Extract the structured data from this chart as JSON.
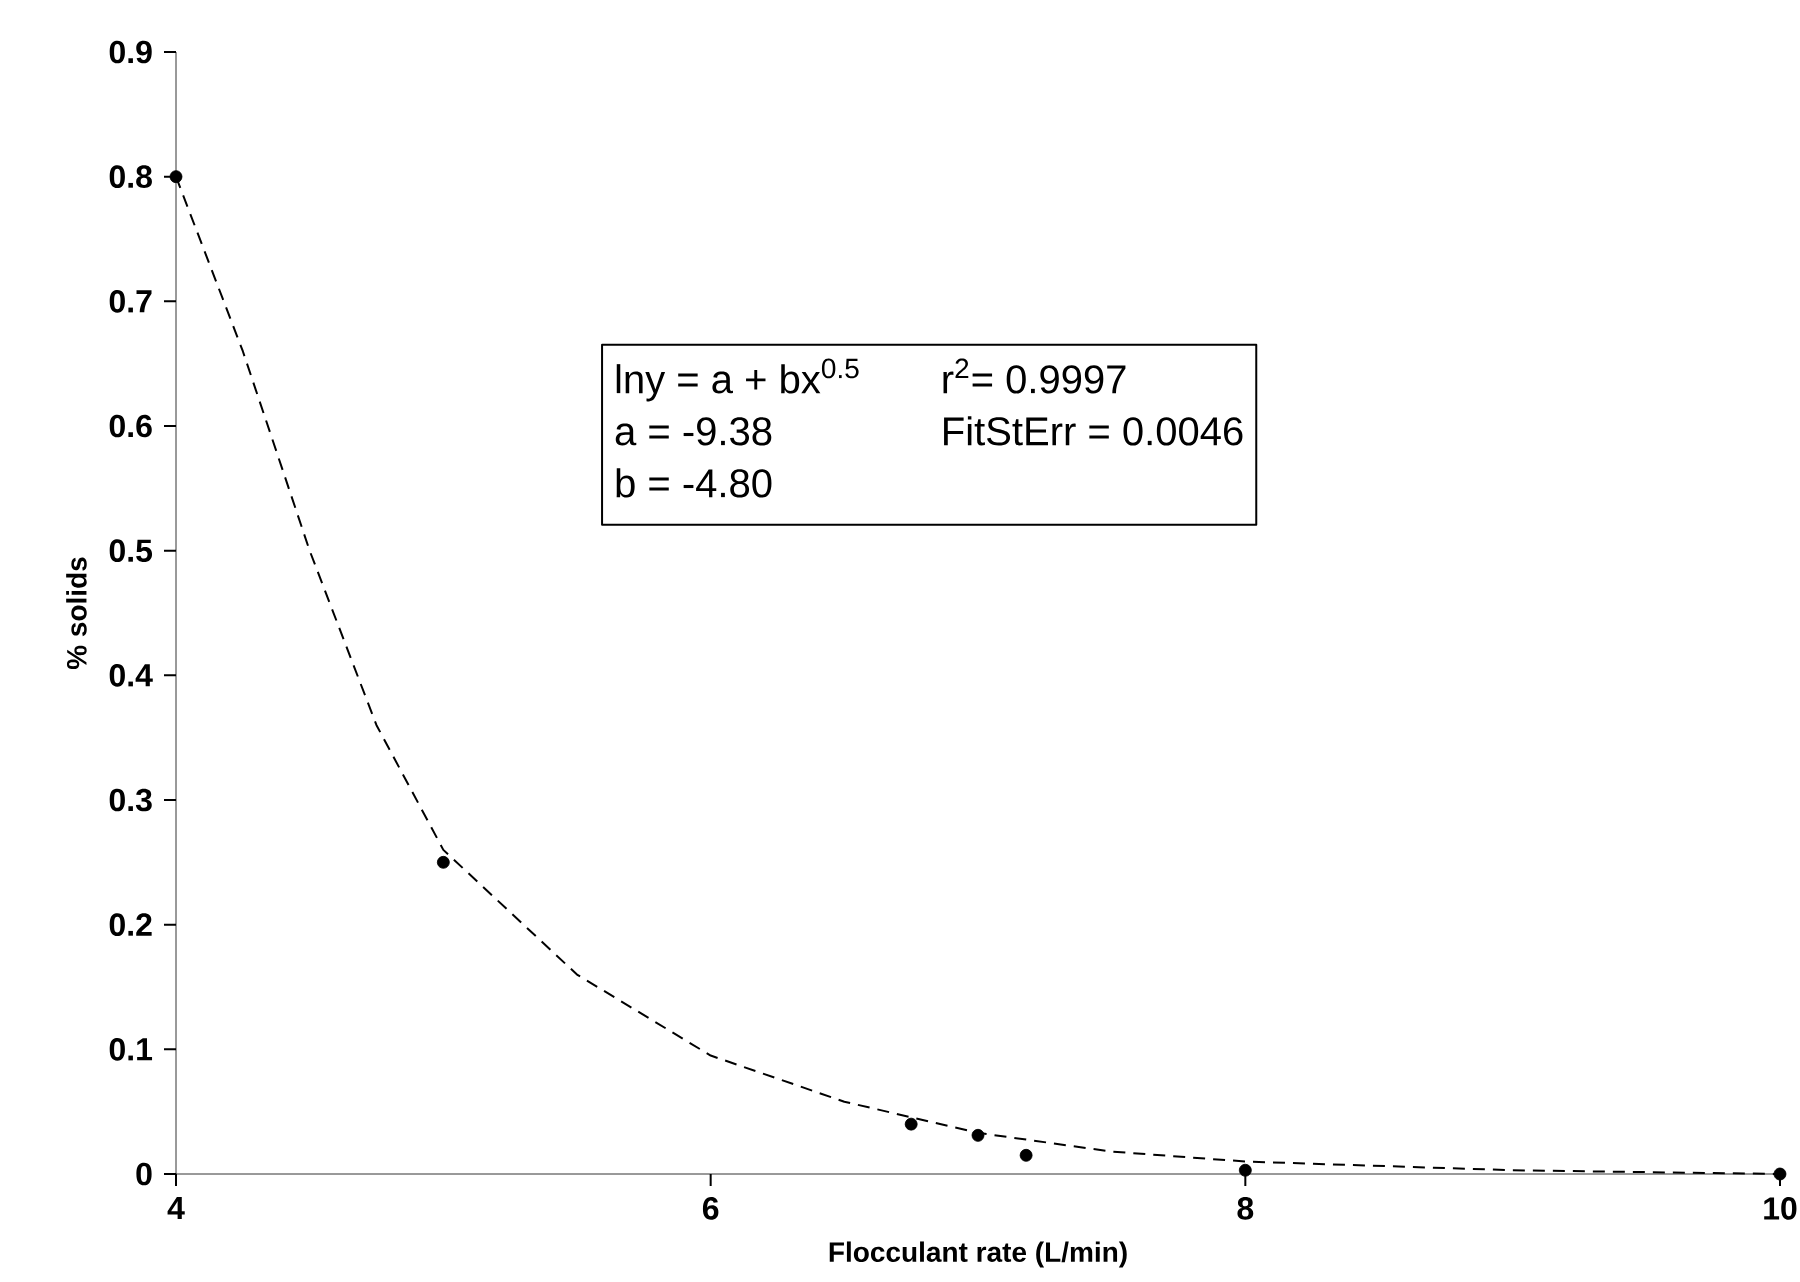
{
  "chart_data": {
    "type": "scatter",
    "xlabel": "Flocculant rate (L/min)",
    "ylabel": "% solids",
    "xlim": [
      4,
      10
    ],
    "ylim": [
      0,
      0.9
    ],
    "xticks": [
      4,
      6,
      8,
      10
    ],
    "yticks": [
      0,
      0.1,
      0.2,
      0.3,
      0.4,
      0.5,
      0.6,
      0.7,
      0.8,
      0.9
    ],
    "series": [
      {
        "color": "#000000",
        "marker": "circle",
        "x": [
          4,
          5,
          6.75,
          7,
          7.18,
          8,
          10
        ],
        "values": [
          0.8,
          0.25,
          0.04,
          0.031,
          0.015,
          0.003,
          0
        ]
      },
      {
        "type": "line",
        "color": "#000000",
        "marker": "none",
        "line_style": "dashed",
        "x": [
          4,
          4.25,
          4.5,
          4.75,
          5,
          5.5,
          6,
          6.5,
          7,
          7.5,
          8,
          9,
          10
        ],
        "values": [
          0.8,
          0.66,
          0.5,
          0.36,
          0.26,
          0.16,
          0.095,
          0.058,
          0.033,
          0.018,
          0.01,
          0.003,
          0
        ]
      }
    ],
    "annotations": [
      "lny = a + bx$^{0.5}$",
      "r$^{2}$= 0.9997",
      "a  = -9.38",
      "FitStErr = 0.0046",
      "b  = -4.80"
    ]
  }
}
